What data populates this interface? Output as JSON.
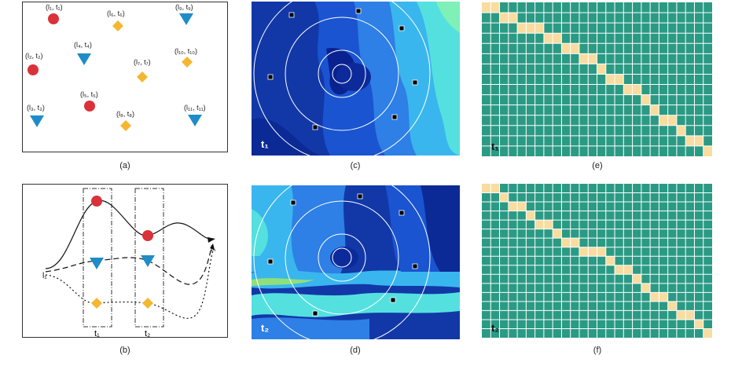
{
  "panel_a": {
    "caption": "(a)",
    "labels": [
      "(l₁, t₁)",
      "(l₆, t₆)",
      "(l₉, t₉)",
      "(l₂, t₂)",
      "(l₄, t₄)",
      "(l₇, t₇)",
      "(l₁₀, t₁₀)",
      "(l₃, t₃)",
      "(l₅, t₅)",
      "(l₈, t₈)",
      "(l₁₁, t₁₁)"
    ]
  },
  "panel_b": {
    "caption": "(b)",
    "start_label": "l₁",
    "end_label": "lₙ",
    "t1_label": "t₁",
    "t2_label": "t₂"
  },
  "panel_c": {
    "caption": "(c)",
    "time_label": "t₁"
  },
  "panel_d": {
    "caption": "(d)",
    "time_label": "t₂"
  },
  "panel_e": {
    "caption": "(e)",
    "time_label": "t₁",
    "path": [
      0,
      0,
      1,
      1,
      2,
      2,
      2,
      3,
      3,
      4,
      4,
      5,
      5,
      6,
      7,
      7,
      8,
      8,
      9,
      10,
      11,
      11,
      12,
      13,
      13,
      14
    ]
  },
  "panel_f": {
    "caption": "(f)",
    "time_label": "t₂",
    "path": [
      0,
      0,
      1,
      2,
      2,
      3,
      4,
      4,
      5,
      6,
      6,
      7,
      7,
      7,
      8,
      9,
      9,
      10,
      11,
      12,
      12,
      13,
      14,
      14,
      15,
      16
    ]
  },
  "colors": {
    "red": "#d9323a",
    "blue": "#1f8cc7",
    "orange": "#f5b731",
    "teal": "#2b9a84",
    "cell": "#f8dca0"
  }
}
